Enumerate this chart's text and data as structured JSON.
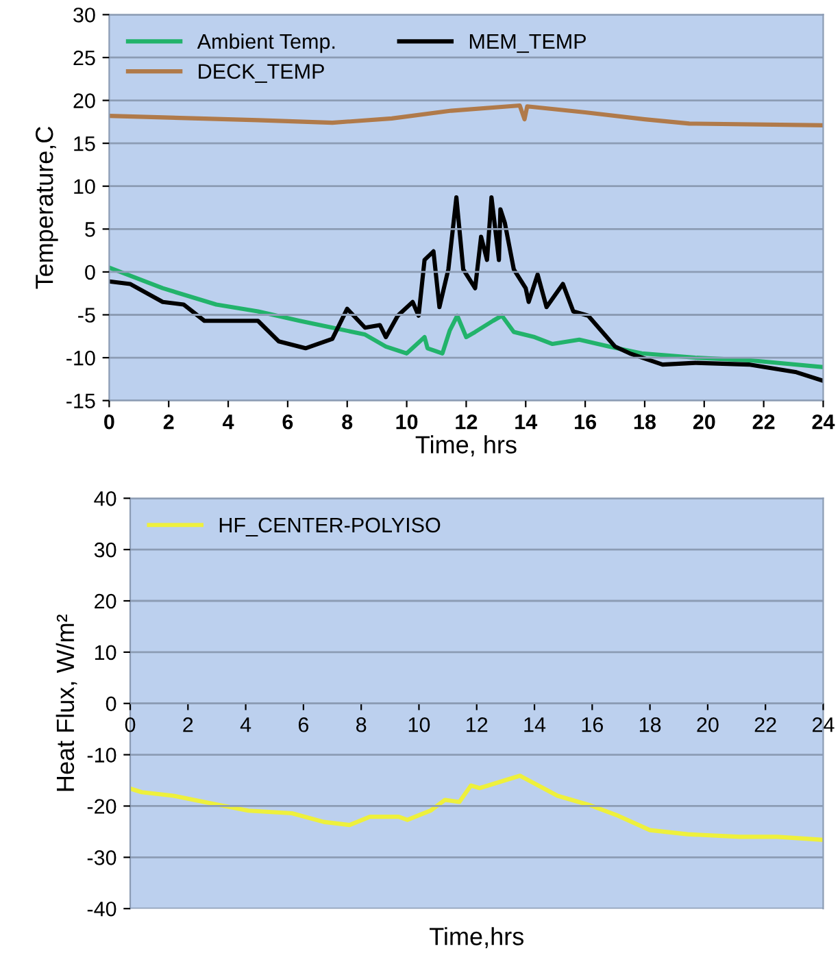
{
  "chart_data": [
    {
      "type": "line",
      "xlabel": "Time, hrs",
      "ylabel": "Temperature,C",
      "xlim": [
        0,
        24
      ],
      "ylim": [
        -15,
        30
      ],
      "xticks": [
        0,
        2,
        4,
        6,
        8,
        10,
        12,
        14,
        16,
        18,
        20,
        22,
        24
      ],
      "yticks": [
        -15,
        -10,
        -5,
        0,
        5,
        10,
        15,
        20,
        25,
        30
      ],
      "grid": "y",
      "legend": "top left",
      "marker": "none",
      "line_style": "solid",
      "series": [
        {
          "name": "Ambient Temp.",
          "color": "#22b36b",
          "x": [
            0,
            1.8,
            3.6,
            5,
            6.4,
            7.5,
            8.6,
            9.3,
            10.0,
            10.6,
            10.7,
            11.2,
            11.45,
            11.7,
            12.0,
            12.3,
            12.9,
            13.2,
            13.6,
            14.3,
            14.9,
            15.8,
            16.8,
            17.9,
            19.7,
            21.5,
            24
          ],
          "values": [
            0.5,
            -1.9,
            -3.8,
            -4.6,
            -5.7,
            -6.5,
            -7.3,
            -8.7,
            -9.5,
            -7.6,
            -8.9,
            -9.5,
            -6.8,
            -5.1,
            -7.6,
            -7.0,
            -5.7,
            -5.1,
            -7.0,
            -7.6,
            -8.4,
            -7.9,
            -8.7,
            -9.5,
            -10.0,
            -10.3,
            -11.1
          ]
        },
        {
          "name": "MEM_TEMP",
          "color": "#000000",
          "x": [
            0,
            0.7,
            1.8,
            2.5,
            3.2,
            3.9,
            5,
            5.7,
            6.6,
            7.5,
            8.0,
            8.6,
            9.1,
            9.3,
            9.7,
            10.2,
            10.4,
            10.6,
            10.9,
            11.1,
            11.4,
            11.67,
            11.9,
            12.3,
            12.5,
            12.7,
            12.85,
            13.1,
            13.15,
            13.3,
            13.6,
            14.0,
            14.1,
            14.4,
            14.7,
            15.25,
            15.6,
            16.1,
            17.0,
            17.5,
            18.6,
            19.7,
            21.5,
            23.1,
            24
          ],
          "values": [
            -1.1,
            -1.4,
            -3.5,
            -3.8,
            -5.7,
            -5.7,
            -5.7,
            -8.1,
            -8.9,
            -7.8,
            -4.3,
            -6.5,
            -6.2,
            -7.6,
            -5.1,
            -3.5,
            -5.1,
            1.4,
            2.4,
            -4.1,
            0.3,
            8.7,
            0.3,
            -1.9,
            4.1,
            1.4,
            8.7,
            1.4,
            7.3,
            5.7,
            0.3,
            -1.9,
            -3.5,
            -0.3,
            -4.1,
            -1.4,
            -4.6,
            -5.1,
            -8.7,
            -9.5,
            -10.8,
            -10.6,
            -10.8,
            -11.7,
            -12.7
          ]
        },
        {
          "name": "DECK_TEMP",
          "color": "#b07a4a",
          "x": [
            0,
            3,
            5,
            7.5,
            9.5,
            11.5,
            13.8,
            13.96,
            14.05,
            16,
            18,
            19.5,
            24
          ],
          "values": [
            18.2,
            17.9,
            17.7,
            17.4,
            17.9,
            18.8,
            19.4,
            17.8,
            19.3,
            18.6,
            17.8,
            17.3,
            17.1
          ]
        }
      ]
    },
    {
      "type": "line",
      "xlabel": "Time,hrs",
      "ylabel": "Heat Flux, W/m²",
      "xlim": [
        0,
        24
      ],
      "ylim": [
        -40,
        40
      ],
      "xticks": [
        0,
        2,
        4,
        6,
        8,
        10,
        12,
        14,
        16,
        18,
        20,
        22,
        24
      ],
      "yticks": [
        -40,
        -30,
        -20,
        -10,
        0,
        10,
        20,
        30,
        40
      ],
      "grid": "y",
      "legend": "top left",
      "marker": "none",
      "line_style": "solid",
      "series": [
        {
          "name": "HF_CENTER-POLYISO",
          "color": "#eef03c",
          "x": [
            0,
            0.4,
            1.5,
            3,
            4.1,
            5.6,
            6.7,
            7.6,
            8.3,
            9.3,
            9.6,
            10.4,
            10.9,
            11.4,
            11.8,
            12.1,
            12.4,
            12.97,
            13.5,
            14.3,
            14.8,
            15.9,
            16.9,
            18,
            19.3,
            21.1,
            22.4,
            24
          ],
          "values": [
            -16.6,
            -17.3,
            -18,
            -19.7,
            -20.9,
            -21.4,
            -23.1,
            -23.7,
            -22.1,
            -22.1,
            -22.7,
            -20.9,
            -18.8,
            -19.2,
            -16,
            -16.5,
            -16,
            -15,
            -14.1,
            -16.5,
            -18,
            -19.8,
            -21.9,
            -24.7,
            -25.5,
            -26,
            -26,
            -26.6
          ]
        }
      ]
    }
  ]
}
